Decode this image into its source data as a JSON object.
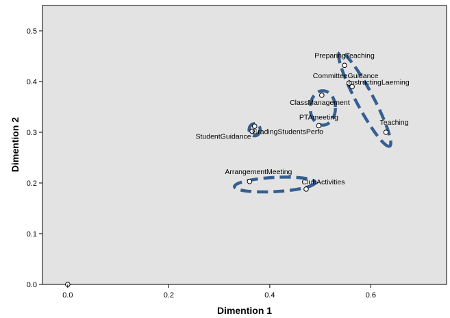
{
  "chart_data": {
    "type": "scatter",
    "title": "",
    "xlabel": "Dimention  1",
    "ylabel": "Dimention  2",
    "xlim": [
      -0.05,
      0.75
    ],
    "ylim": [
      0.0,
      0.55
    ],
    "xticks": [
      "0.0",
      "0.2",
      "0.4",
      "0.6"
    ],
    "xtick_values": [
      0.0,
      0.2,
      0.4,
      0.6
    ],
    "yticks": [
      "0.0",
      "0.1",
      "0.2",
      "0.3",
      "0.4",
      "0.5"
    ],
    "ytick_values": [
      0.0,
      0.1,
      0.2,
      0.3,
      0.4,
      0.5
    ],
    "grid": false,
    "colors": {
      "plot_background": "#e3e3e3",
      "point_fill": "#ffffff",
      "point_stroke": "#000000",
      "cluster_outline": "#365f91"
    },
    "points": [
      {
        "label": "PreparingTeaching",
        "x": 0.548,
        "y": 0.432
      },
      {
        "label": "CommitteeGuidance",
        "x": 0.557,
        "y": 0.397
      },
      {
        "label": "InstructingLaerning",
        "x": 0.563,
        "y": 0.39
      },
      {
        "label": "ClassManagement",
        "x": 0.503,
        "y": 0.373
      },
      {
        "label": "PTAmeeting",
        "x": 0.497,
        "y": 0.313
      },
      {
        "label": "Teaching",
        "x": 0.63,
        "y": 0.3
      },
      {
        "label": "",
        "x": 0.37,
        "y": 0.312
      },
      {
        "label": "GradingStudentsPerfo",
        "x": 0.365,
        "y": 0.302
      },
      {
        "label": "StudentGuidance",
        "x": 0.365,
        "y": 0.302
      },
      {
        "label": "ArrangementMeeting",
        "x": 0.36,
        "y": 0.203
      },
      {
        "label": "ClubActivities",
        "x": 0.472,
        "y": 0.188
      },
      {
        "label": "",
        "x": 0.0,
        "y": 0.0
      }
    ],
    "clusters": [
      {
        "cx": 0.588,
        "cy": 0.365,
        "rx": 0.105,
        "ry": 0.017,
        "angle_deg": 62
      },
      {
        "cx": 0.505,
        "cy": 0.348,
        "rx": 0.025,
        "ry": 0.034,
        "angle_deg": 0
      },
      {
        "cx": 0.37,
        "cy": 0.305,
        "rx": 0.011,
        "ry": 0.012,
        "angle_deg": 0
      },
      {
        "cx": 0.41,
        "cy": 0.197,
        "rx": 0.08,
        "ry": 0.014,
        "angle_deg": -3
      }
    ]
  }
}
